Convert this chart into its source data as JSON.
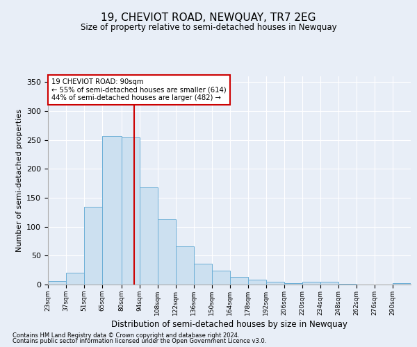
{
  "title": "19, CHEVIOT ROAD, NEWQUAY, TR7 2EG",
  "subtitle": "Size of property relative to semi-detached houses in Newquay",
  "xlabel": "Distribution of semi-detached houses by size in Newquay",
  "ylabel": "Number of semi-detached properties",
  "footnote1": "Contains HM Land Registry data © Crown copyright and database right 2024.",
  "footnote2": "Contains public sector information licensed under the Open Government Licence v3.0.",
  "annotation_line1": "19 CHEVIOT ROAD: 90sqm",
  "annotation_line2": "← 55% of semi-detached houses are smaller (614)",
  "annotation_line3": "44% of semi-detached houses are larger (482) →",
  "bar_edges": [
    23,
    37,
    51,
    65,
    80,
    94,
    108,
    122,
    136,
    150,
    164,
    178,
    192,
    206,
    220,
    234,
    248,
    262,
    276,
    290,
    304
  ],
  "bar_heights": [
    6,
    21,
    135,
    257,
    255,
    168,
    113,
    66,
    36,
    24,
    13,
    9,
    5,
    3,
    5,
    5,
    1,
    0,
    0,
    3
  ],
  "property_size": 90,
  "bar_color": "#cce0f0",
  "bar_edge_color": "#6baed6",
  "line_color": "#cc0000",
  "box_color": "#ffffff",
  "box_edge_color": "#cc0000",
  "background_color": "#e8eef7",
  "ylim": [
    0,
    360
  ],
  "yticks": [
    0,
    50,
    100,
    150,
    200,
    250,
    300,
    350
  ]
}
